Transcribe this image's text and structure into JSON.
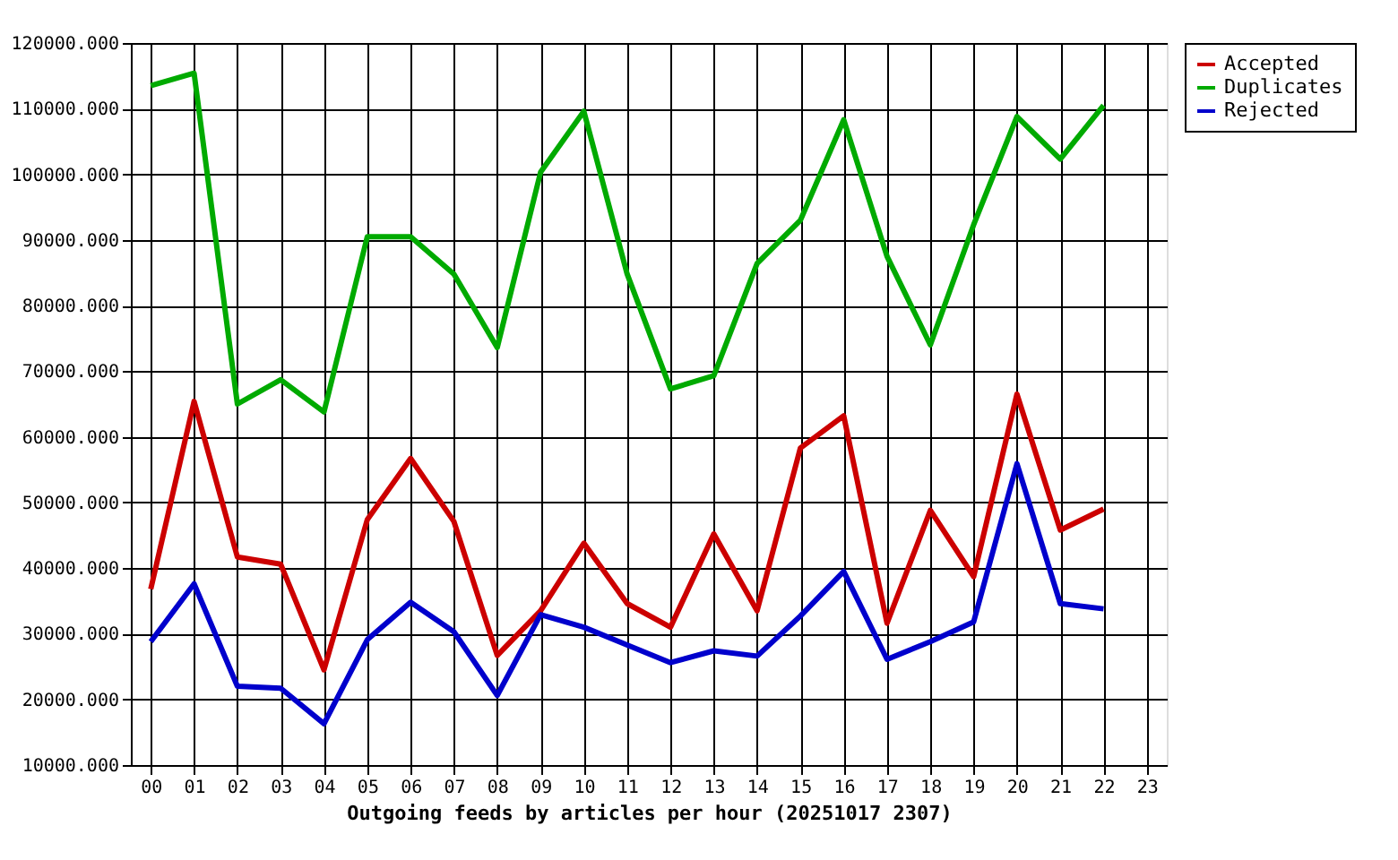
{
  "chart_data": {
    "type": "line",
    "xlabel": "Outgoing feeds by articles per hour (20251017 2307)",
    "categories": [
      "00",
      "01",
      "02",
      "03",
      "04",
      "05",
      "06",
      "07",
      "08",
      "09",
      "10",
      "11",
      "12",
      "13",
      "14",
      "15",
      "16",
      "17",
      "18",
      "19",
      "20",
      "21",
      "22",
      "23"
    ],
    "series": [
      {
        "name": "Accepted",
        "color": "#cc0000",
        "values": [
          36800,
          65400,
          41700,
          40600,
          24500,
          47400,
          56700,
          47100,
          26700,
          33500,
          43800,
          34600,
          31000,
          45200,
          33500,
          58300,
          63200,
          31600,
          48800,
          38700,
          66500,
          45800,
          49000,
          null
        ]
      },
      {
        "name": "Duplicates",
        "color": "#00aa00",
        "values": [
          113500,
          115400,
          65000,
          68700,
          63800,
          90500,
          90500,
          84800,
          73600,
          100300,
          109600,
          84800,
          67300,
          69300,
          86400,
          93000,
          108300,
          87500,
          74000,
          92300,
          108800,
          102300,
          110500,
          null
        ]
      },
      {
        "name": "Rejected",
        "color": "#0000cc",
        "values": [
          28800,
          37600,
          22000,
          21700,
          16300,
          29100,
          34800,
          30300,
          20600,
          32900,
          31000,
          28300,
          25600,
          27400,
          26600,
          32700,
          39500,
          26100,
          28800,
          31800,
          55900,
          34600,
          33800,
          null
        ]
      }
    ],
    "ylim": [
      10000,
      120000
    ],
    "yticks": [
      {
        "value": 10000,
        "label": "10000.000"
      },
      {
        "value": 20000,
        "label": "20000.000"
      },
      {
        "value": 30000,
        "label": "30000.000"
      },
      {
        "value": 40000,
        "label": "40000.000"
      },
      {
        "value": 50000,
        "label": "50000.000"
      },
      {
        "value": 60000,
        "label": "60000.000"
      },
      {
        "value": 70000,
        "label": "70000.000"
      },
      {
        "value": 80000,
        "label": "80000.000"
      },
      {
        "value": 90000,
        "label": "90000.000"
      },
      {
        "value": 100000,
        "label": "100000.000"
      },
      {
        "value": 110000,
        "label": "110000.000"
      },
      {
        "value": 120000,
        "label": "120000.000"
      }
    ],
    "grid": true,
    "legend": "top right",
    "marker": "none",
    "line_style": "solid"
  }
}
